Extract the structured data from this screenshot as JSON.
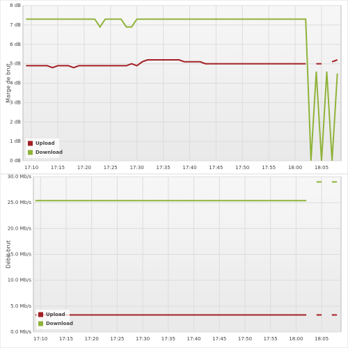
{
  "chart_data": [
    {
      "type": "line",
      "y_label": "Marge de brut",
      "x": [
        1029,
        1030,
        1031,
        1032,
        1033,
        1034,
        1035,
        1036,
        1037,
        1038,
        1039,
        1040,
        1041,
        1042,
        1043,
        1044,
        1045,
        1046,
        1047,
        1048,
        1049,
        1050,
        1051,
        1052,
        1053,
        1054,
        1055,
        1056,
        1057,
        1058,
        1059,
        1060,
        1061,
        1062,
        1063,
        1064,
        1065,
        1066,
        1067,
        1068,
        1069,
        1070,
        1071,
        1072,
        1073,
        1074,
        1075,
        1076,
        1077,
        1078,
        1079,
        1080,
        1081,
        1082,
        1083,
        1084,
        1085,
        1086,
        1087,
        1088
      ],
      "series": [
        {
          "name": "Upload",
          "color": "#a31f24",
          "values": [
            4.9,
            4.9,
            4.9,
            4.9,
            4.9,
            4.8,
            4.9,
            4.9,
            4.9,
            4.8,
            4.9,
            4.9,
            4.9,
            4.9,
            4.9,
            4.9,
            4.9,
            4.9,
            4.9,
            4.9,
            5.0,
            4.9,
            5.1,
            5.2,
            5.2,
            5.2,
            5.2,
            5.2,
            5.2,
            5.2,
            5.1,
            5.1,
            5.1,
            5.1,
            5.0,
            5.0,
            5.0,
            5.0,
            5.0,
            5.0,
            5.0,
            5.0,
            5.0,
            5.0,
            5.0,
            5.0,
            5.0,
            5.0,
            5.0,
            5.0,
            5.0,
            5.0,
            5.0,
            5.0,
            null,
            5.0,
            5.0,
            null,
            5.1,
            5.2
          ]
        },
        {
          "name": "Download",
          "color": "#8fb339",
          "values": [
            7.3,
            7.3,
            7.3,
            7.3,
            7.3,
            7.3,
            7.3,
            7.3,
            7.3,
            7.3,
            7.3,
            7.3,
            7.3,
            7.3,
            6.9,
            7.3,
            7.3,
            7.3,
            7.3,
            6.9,
            6.9,
            7.3,
            7.3,
            7.3,
            7.3,
            7.3,
            7.3,
            7.3,
            7.3,
            7.3,
            7.3,
            7.3,
            7.3,
            7.3,
            7.3,
            7.3,
            7.3,
            7.3,
            7.3,
            7.3,
            7.3,
            7.3,
            7.3,
            7.3,
            7.3,
            7.3,
            7.3,
            7.3,
            7.3,
            7.3,
            7.3,
            7.3,
            7.3,
            7.3,
            0,
            4.6,
            0,
            4.6,
            0,
            4.5
          ]
        }
      ],
      "xlim": [
        1028.4,
        1088.7
      ],
      "xticks": [
        {
          "value": 1030,
          "label": "17:10"
        },
        {
          "value": 1035,
          "label": "17:15"
        },
        {
          "value": 1040,
          "label": "17:20"
        },
        {
          "value": 1045,
          "label": "17:25"
        },
        {
          "value": 1050,
          "label": "17:30"
        },
        {
          "value": 1055,
          "label": "17:35"
        },
        {
          "value": 1060,
          "label": "17:40"
        },
        {
          "value": 1065,
          "label": "17:45"
        },
        {
          "value": 1070,
          "label": "17:50"
        },
        {
          "value": 1075,
          "label": "17:55"
        },
        {
          "value": 1080,
          "label": "18:00"
        },
        {
          "value": 1085,
          "label": "18:05"
        }
      ],
      "ylim": [
        0,
        8
      ],
      "yticks": [
        {
          "value": 0,
          "label": "0 dB"
        },
        {
          "value": 1,
          "label": "1 dB"
        },
        {
          "value": 2,
          "label": "2 dB"
        },
        {
          "value": 3,
          "label": "3 dB"
        },
        {
          "value": 4,
          "label": "4 dB"
        },
        {
          "value": 5,
          "label": "5 dB"
        },
        {
          "value": 6,
          "label": "6 dB"
        },
        {
          "value": 7,
          "label": "7 dB"
        },
        {
          "value": 8,
          "label": "8 dB"
        }
      ],
      "grid": true,
      "legend": "lower left"
    },
    {
      "type": "line",
      "y_label": "Débit brut",
      "x": [
        1029,
        1030,
        1031,
        1032,
        1033,
        1034,
        1035,
        1036,
        1037,
        1038,
        1039,
        1040,
        1041,
        1042,
        1043,
        1044,
        1045,
        1046,
        1047,
        1048,
        1049,
        1050,
        1051,
        1052,
        1053,
        1054,
        1055,
        1056,
        1057,
        1058,
        1059,
        1060,
        1061,
        1062,
        1063,
        1064,
        1065,
        1066,
        1067,
        1068,
        1069,
        1070,
        1071,
        1072,
        1073,
        1074,
        1075,
        1076,
        1077,
        1078,
        1079,
        1080,
        1081,
        1082,
        1083,
        1084,
        1085,
        1086,
        1087,
        1088
      ],
      "series": [
        {
          "name": "Upload",
          "color": "#a31f24",
          "values": [
            3.3,
            3.3,
            3.3,
            3.3,
            3.3,
            3.3,
            3.3,
            3.3,
            3.3,
            3.3,
            3.3,
            3.3,
            3.3,
            3.3,
            3.3,
            3.3,
            3.3,
            3.3,
            3.3,
            3.3,
            3.3,
            3.3,
            3.3,
            3.3,
            3.3,
            3.3,
            3.3,
            3.3,
            3.3,
            3.3,
            3.3,
            3.3,
            3.3,
            3.3,
            3.3,
            3.3,
            3.3,
            3.3,
            3.3,
            3.3,
            3.3,
            3.3,
            3.3,
            3.3,
            3.3,
            3.3,
            3.3,
            3.3,
            3.3,
            3.3,
            3.3,
            3.3,
            3.3,
            3.3,
            null,
            3.3,
            3.3,
            null,
            3.3,
            3.3
          ]
        },
        {
          "name": "Download",
          "color": "#8fb339",
          "values": [
            25.4,
            25.4,
            25.4,
            25.4,
            25.4,
            25.4,
            25.4,
            25.4,
            25.4,
            25.4,
            25.4,
            25.4,
            25.4,
            25.4,
            25.4,
            25.4,
            25.4,
            25.4,
            25.4,
            25.4,
            25.4,
            25.4,
            25.4,
            25.4,
            25.4,
            25.4,
            25.4,
            25.4,
            25.4,
            25.4,
            25.4,
            25.4,
            25.4,
            25.4,
            25.4,
            25.4,
            25.4,
            25.4,
            25.4,
            25.4,
            25.4,
            25.4,
            25.4,
            25.4,
            25.4,
            25.4,
            25.4,
            25.4,
            25.4,
            25.4,
            25.4,
            25.4,
            25.4,
            25.4,
            null,
            29.0,
            29.0,
            null,
            29.0,
            29.0
          ]
        }
      ],
      "xlim": [
        1028.6,
        1088.8
      ],
      "xticks": [
        {
          "value": 1030,
          "label": "17:10"
        },
        {
          "value": 1035,
          "label": "17:15"
        },
        {
          "value": 1040,
          "label": "17:20"
        },
        {
          "value": 1045,
          "label": "17:25"
        },
        {
          "value": 1050,
          "label": "17:30"
        },
        {
          "value": 1055,
          "label": "17:35"
        },
        {
          "value": 1060,
          "label": "17:40"
        },
        {
          "value": 1065,
          "label": "17:45"
        },
        {
          "value": 1070,
          "label": "17:50"
        },
        {
          "value": 1075,
          "label": "17:55"
        },
        {
          "value": 1080,
          "label": "18:00"
        },
        {
          "value": 1085,
          "label": "18:05"
        }
      ],
      "ylim": [
        0,
        30
      ],
      "yticks": [
        {
          "value": 0,
          "label": "0.0 Mb/s"
        },
        {
          "value": 5,
          "label": "5.0 Mb/s"
        },
        {
          "value": 10,
          "label": "10.0 Mb/s"
        },
        {
          "value": 15,
          "label": "15.0 Mb/s"
        },
        {
          "value": 20,
          "label": "20.0 Mb/s"
        },
        {
          "value": 25,
          "label": "25.0 Mb/s"
        },
        {
          "value": 30,
          "label": "30.0 Mb/s"
        }
      ],
      "grid": true,
      "legend": "lower left"
    }
  ]
}
